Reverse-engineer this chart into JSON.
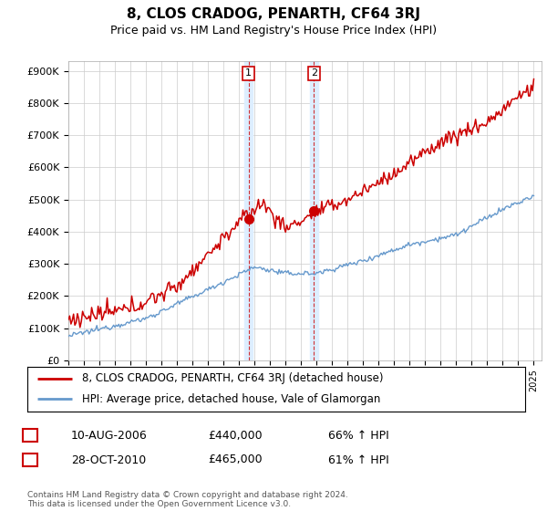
{
  "title": "8, CLOS CRADOG, PENARTH, CF64 3RJ",
  "subtitle": "Price paid vs. HM Land Registry's House Price Index (HPI)",
  "ylabel_ticks": [
    "£0",
    "£100K",
    "£200K",
    "£300K",
    "£400K",
    "£500K",
    "£600K",
    "£700K",
    "£800K",
    "£900K"
  ],
  "ytick_vals": [
    0,
    100000,
    200000,
    300000,
    400000,
    500000,
    600000,
    700000,
    800000,
    900000
  ],
  "ylim": [
    0,
    930000
  ],
  "xlim_start": 1995.0,
  "xlim_end": 2025.5,
  "sale1_x": 2006.61,
  "sale1_y": 440000,
  "sale1_label": "1",
  "sale2_x": 2010.83,
  "sale2_y": 465000,
  "sale2_label": "2",
  "red_color": "#cc0000",
  "blue_color": "#6699cc",
  "shade_color": "#ddeeff",
  "legend_line1": "8, CLOS CRADOG, PENARTH, CF64 3RJ (detached house)",
  "legend_line2": "HPI: Average price, detached house, Vale of Glamorgan",
  "table_row1_num": "1",
  "table_row1_date": "10-AUG-2006",
  "table_row1_price": "£440,000",
  "table_row1_hpi": "66% ↑ HPI",
  "table_row2_num": "2",
  "table_row2_date": "28-OCT-2010",
  "table_row2_price": "£465,000",
  "table_row2_hpi": "61% ↑ HPI",
  "footer": "Contains HM Land Registry data © Crown copyright and database right 2024.\nThis data is licensed under the Open Government Licence v3.0.",
  "bg_color": "#ffffff",
  "grid_color": "#cccccc"
}
